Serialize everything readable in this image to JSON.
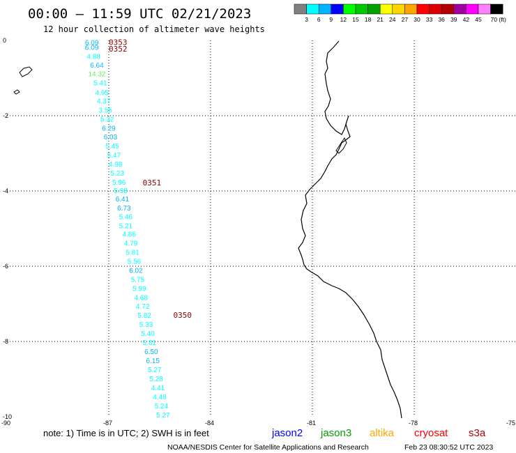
{
  "header": {
    "title": "00:00 – 11:59 UTC 02/21/2023",
    "subtitle": "12 hour collection of altimeter wave heights"
  },
  "legend": {
    "labels": [
      "3",
      "6",
      "9",
      "12",
      "15",
      "18",
      "21",
      "24",
      "27",
      "30",
      "33",
      "36",
      "39",
      "42",
      "45",
      "70 (ft)"
    ],
    "colors": [
      "#808080",
      "#00ffff",
      "#00b4ff",
      "#0000ff",
      "#00ff00",
      "#00c800",
      "#00a000",
      "#ffff00",
      "#ffd700",
      "#ffa500",
      "#ff0000",
      "#dc0000",
      "#b40000",
      "#a000a0",
      "#ff00ff",
      "#ff80ff",
      "#000000"
    ]
  },
  "map": {
    "lon_min": -90,
    "lon_max": -75,
    "lat_min": -10,
    "lat_max": 0,
    "x_tick_labels": [
      "-90",
      "-87",
      "-84",
      "-81",
      "-78",
      "-75"
    ],
    "y_tick_labels": [
      "0",
      "-2",
      "-4",
      "-6",
      "-8",
      "-10"
    ],
    "points": [
      {
        "lon": -87.5,
        "lat": -0.05,
        "value": "6.09"
      },
      {
        "lon": -87.5,
        "lat": -0.18,
        "value": "6.09"
      },
      {
        "lon": -87.45,
        "lat": -0.42,
        "value": "4.88"
      },
      {
        "lon": -87.35,
        "lat": -0.65,
        "value": "6.64"
      },
      {
        "lon": -87.35,
        "lat": -0.88,
        "value": "14.32"
      },
      {
        "lon": -87.25,
        "lat": -1.12,
        "value": "5.41"
      },
      {
        "lon": -87.2,
        "lat": -1.38,
        "value": "4.95"
      },
      {
        "lon": -87.15,
        "lat": -1.6,
        "value": "4.37"
      },
      {
        "lon": -87.1,
        "lat": -1.84,
        "value": "3.55"
      },
      {
        "lon": -87.05,
        "lat": -2.08,
        "value": "5.32"
      },
      {
        "lon": -87.0,
        "lat": -2.32,
        "value": "6.29"
      },
      {
        "lon": -86.95,
        "lat": -2.56,
        "value": "6.03"
      },
      {
        "lon": -86.9,
        "lat": -2.8,
        "value": "5.45"
      },
      {
        "lon": -86.85,
        "lat": -3.04,
        "value": "5.47"
      },
      {
        "lon": -86.8,
        "lat": -3.28,
        "value": "4.98"
      },
      {
        "lon": -86.75,
        "lat": -3.52,
        "value": "5.23"
      },
      {
        "lon": -86.7,
        "lat": -3.76,
        "value": "5.96"
      },
      {
        "lon": -86.65,
        "lat": -3.98,
        "value": "5.98"
      },
      {
        "lon": -86.6,
        "lat": -4.2,
        "value": "6.41"
      },
      {
        "lon": -86.55,
        "lat": -4.44,
        "value": "6.73"
      },
      {
        "lon": -86.5,
        "lat": -4.68,
        "value": "5.46"
      },
      {
        "lon": -86.5,
        "lat": -4.92,
        "value": "5.21"
      },
      {
        "lon": -86.4,
        "lat": -5.14,
        "value": "4.86"
      },
      {
        "lon": -86.35,
        "lat": -5.38,
        "value": "4.79"
      },
      {
        "lon": -86.3,
        "lat": -5.62,
        "value": "5.81"
      },
      {
        "lon": -86.25,
        "lat": -5.86,
        "value": "5.56"
      },
      {
        "lon": -86.2,
        "lat": -6.1,
        "value": "6.02"
      },
      {
        "lon": -86.15,
        "lat": -6.34,
        "value": "5.75"
      },
      {
        "lon": -86.1,
        "lat": -6.58,
        "value": "5.99"
      },
      {
        "lon": -86.05,
        "lat": -6.82,
        "value": "4.68"
      },
      {
        "lon": -86.0,
        "lat": -7.06,
        "value": "4.72"
      },
      {
        "lon": -85.95,
        "lat": -7.3,
        "value": "5.82"
      },
      {
        "lon": -85.9,
        "lat": -7.54,
        "value": "5.33"
      },
      {
        "lon": -85.85,
        "lat": -7.78,
        "value": "5.40"
      },
      {
        "lon": -85.8,
        "lat": -8.02,
        "value": "5.81"
      },
      {
        "lon": -85.75,
        "lat": -8.26,
        "value": "6.50"
      },
      {
        "lon": -85.7,
        "lat": -8.5,
        "value": "6.15"
      },
      {
        "lon": -85.65,
        "lat": -8.74,
        "value": "5.27"
      },
      {
        "lon": -85.6,
        "lat": -8.98,
        "value": "5.28"
      },
      {
        "lon": -85.55,
        "lat": -9.22,
        "value": "4.41"
      },
      {
        "lon": -85.5,
        "lat": -9.46,
        "value": "4.48"
      },
      {
        "lon": -85.45,
        "lat": -9.7,
        "value": "5.24"
      },
      {
        "lon": -85.4,
        "lat": -9.94,
        "value": "5.27"
      }
    ],
    "time_labels": [
      {
        "lon": -87.0,
        "lat": -0.05,
        "text": "0353"
      },
      {
        "lon": -87.0,
        "lat": -0.22,
        "text": "0352"
      },
      {
        "lon": -86.0,
        "lat": -3.78,
        "text": "0351"
      },
      {
        "lon": -85.1,
        "lat": -7.3,
        "text": "0350"
      }
    ]
  },
  "footer": {
    "note": "note:  1) Time is in UTC;  2) SWH is in feet",
    "satellites": [
      {
        "name": "jason2",
        "color": "#0000ff"
      },
      {
        "name": "jason3",
        "color": "#00a000"
      },
      {
        "name": "altika",
        "color": "#ffa500"
      },
      {
        "name": "cryosat",
        "color": "#ff0000"
      },
      {
        "name": "s3a",
        "color": "#b40000"
      }
    ],
    "credit": "NOAA/NESDIS Center for Satellite Applications and Research",
    "timestamp": "Feb 23 08:30:52 UTC 2023"
  }
}
